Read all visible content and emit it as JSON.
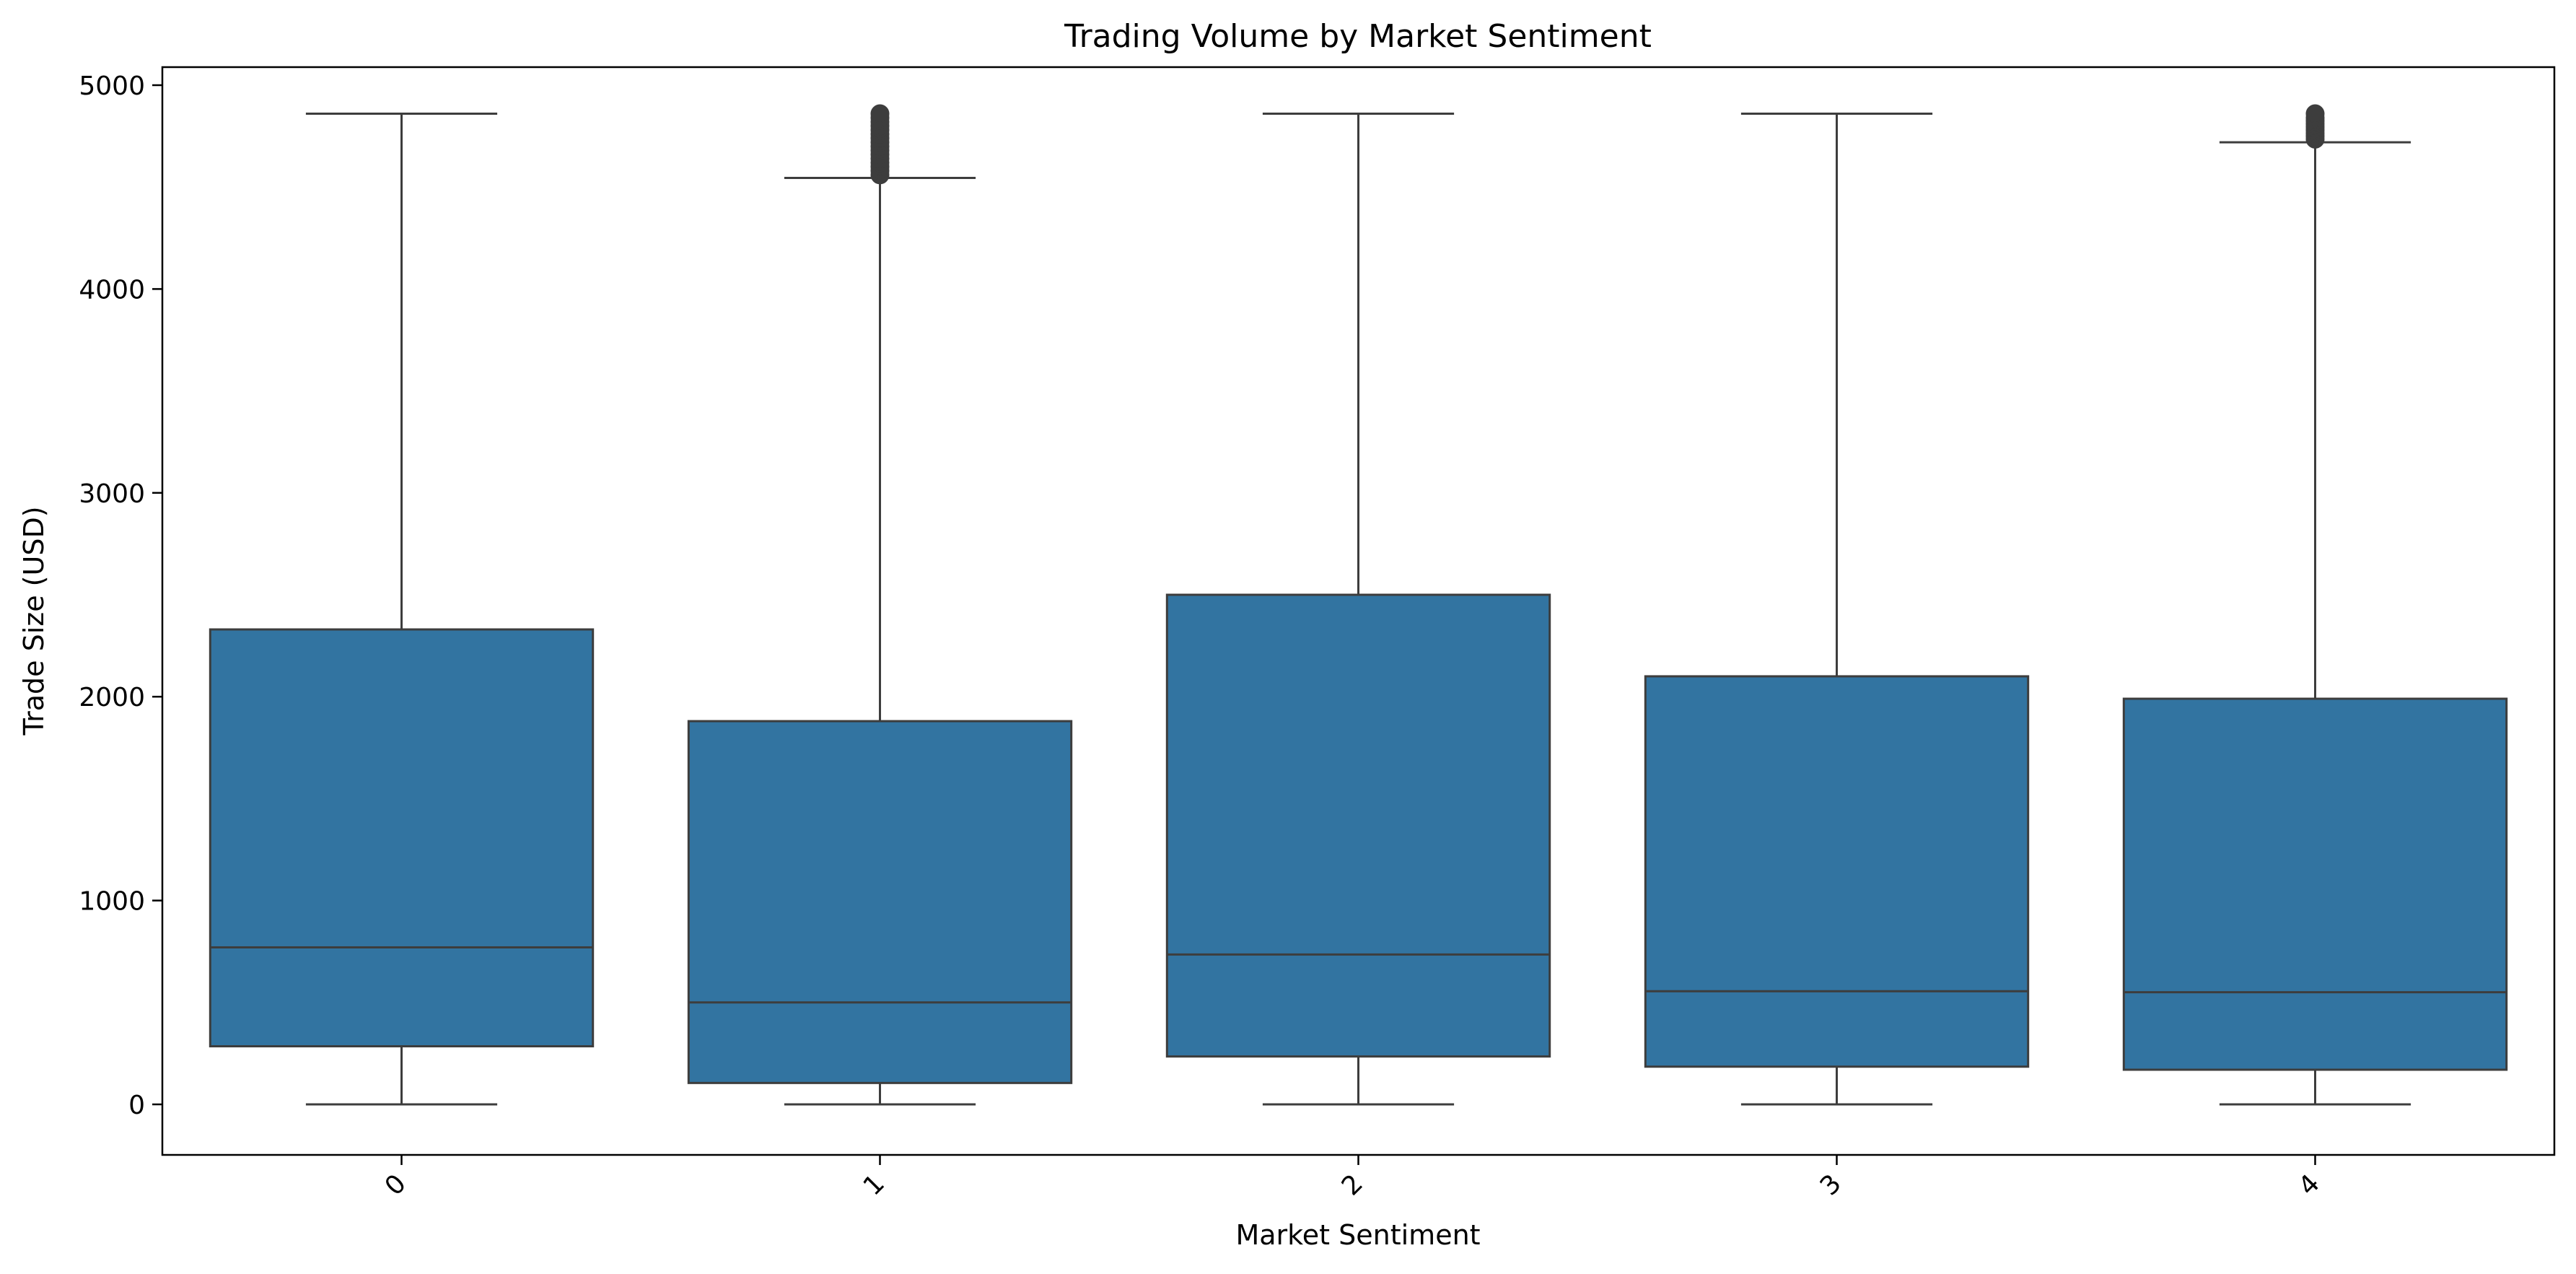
{
  "chart_data": {
    "type": "box",
    "title": "Trading Volume by Market Sentiment",
    "xlabel": "Market Sentiment",
    "ylabel": "Trade Size (USD)",
    "categories": [
      "0",
      "1",
      "2",
      "3",
      "4"
    ],
    "ylim": [
      -250,
      5100
    ],
    "yticks": [
      0,
      1000,
      2000,
      3000,
      4000,
      5000
    ],
    "yticklabels": [
      "0",
      "1000",
      "2000",
      "3000",
      "4000",
      "5000"
    ],
    "xtick_rotation_deg": 45,
    "grid": false,
    "legend": "none",
    "box_color": "#3274a1",
    "line_color": "#3d3d3d",
    "boxes": [
      {
        "category": "0",
        "whisker_low": 0,
        "q1": 285,
        "median": 770,
        "q3": 2330,
        "whisker_high": 4860,
        "outliers": []
      },
      {
        "category": "1",
        "whisker_low": 0,
        "q1": 105,
        "median": 500,
        "q3": 1880,
        "whisker_high": 4545,
        "outliers": [
          4560,
          4580,
          4600,
          4620,
          4640,
          4660,
          4680,
          4700,
          4720,
          4740,
          4760,
          4780,
          4800,
          4820,
          4840,
          4860
        ]
      },
      {
        "category": "2",
        "whisker_low": 0,
        "q1": 235,
        "median": 735,
        "q3": 2500,
        "whisker_high": 4860,
        "outliers": []
      },
      {
        "category": "3",
        "whisker_low": 0,
        "q1": 185,
        "median": 555,
        "q3": 2100,
        "whisker_high": 4860,
        "outliers": []
      },
      {
        "category": "4",
        "whisker_low": 0,
        "q1": 170,
        "median": 550,
        "q3": 1990,
        "whisker_high": 4720,
        "outliers": [
          4735,
          4750,
          4765,
          4780,
          4795,
          4810,
          4825,
          4840,
          4860
        ]
      }
    ]
  }
}
